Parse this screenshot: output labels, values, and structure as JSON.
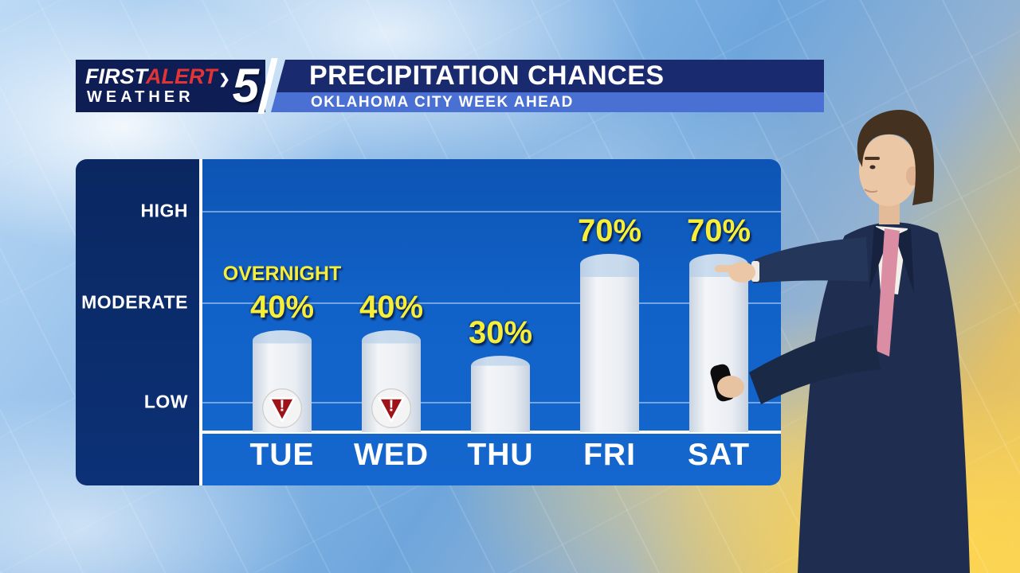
{
  "header": {
    "logo": {
      "first": "FIRST",
      "alert": "ALERT",
      "chevron": "❯",
      "weather": "WEATHER",
      "channel": "5"
    },
    "title": "PRECIPITATION CHANCES",
    "subtitle": "OKLAHOMA CITY WEEK AHEAD"
  },
  "chart_data": {
    "type": "bar",
    "title": "PRECIPITATION CHANCES",
    "subtitle": "OKLAHOMA CITY WEEK AHEAD",
    "categories": [
      "TUE",
      "WED",
      "THU",
      "FRI",
      "SAT"
    ],
    "values": [
      40,
      40,
      30,
      70,
      70
    ],
    "value_suffix": "%",
    "value_labels": [
      "40%",
      "40%",
      "30%",
      "70%",
      "70%"
    ],
    "y_tick_labels": [
      "HIGH",
      "MODERATE",
      "LOW"
    ],
    "y_tick_values_pct": [
      87,
      51,
      12
    ],
    "ylim": [
      0,
      100
    ],
    "xlabel": "",
    "ylabel": "",
    "grid": true,
    "legend": false,
    "annotations": [
      {
        "category": "TUE",
        "text": "OVERNIGHT"
      }
    ],
    "warning_markers": [
      "TUE",
      "WED"
    ],
    "colors": {
      "value_label": "#f7ee3a",
      "bar_fill": "#e9edf2",
      "plot_bg": "#1161c9",
      "axis_panel_bg": "#0a2d71",
      "warning_red": "#9e1318",
      "alert_red": "#e23434",
      "header_navy": "#1a2a6e",
      "subtitle_blue": "#4a70d4"
    }
  },
  "scene": {
    "presenter": "weather presenter pointing at chart"
  }
}
